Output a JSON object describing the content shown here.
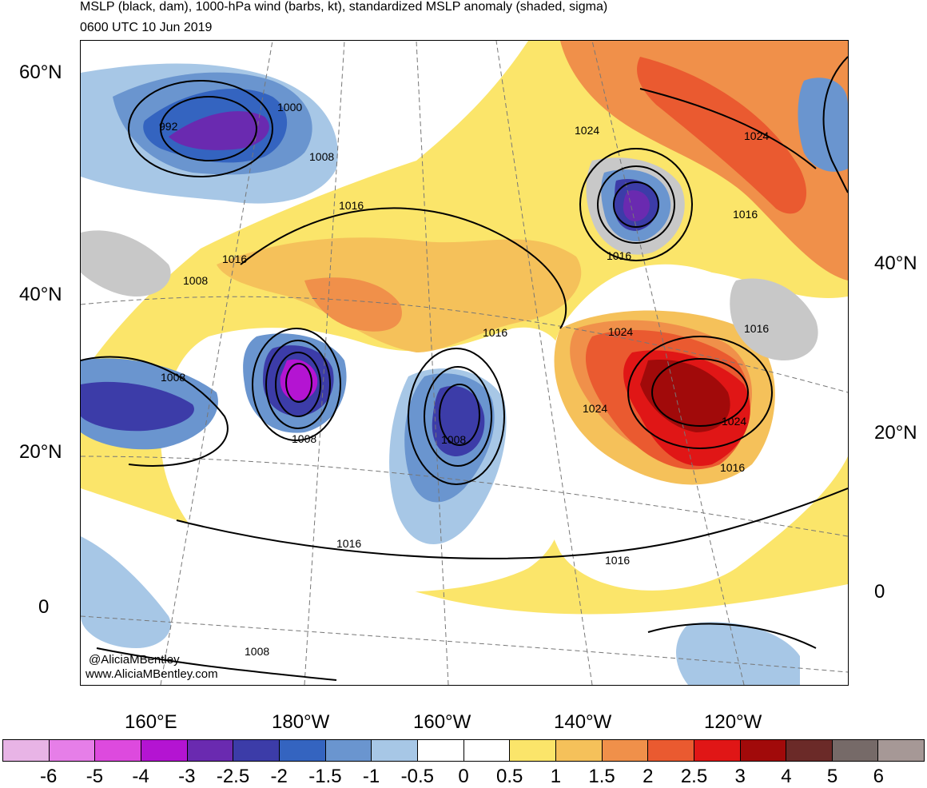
{
  "title_line1": "MSLP (black, dam), 1000-hPa wind (barbs, kt), standardized MSLP anomaly (shaded, sigma)",
  "title_line2": "0600 UTC 10 Jun 2019",
  "lat_labels_left": [
    "60°N",
    "40°N",
    "20°N",
    "0"
  ],
  "lat_labels_right": [
    "40°N",
    "20°N",
    "0"
  ],
  "lon_labels": [
    "160°E",
    "180°W",
    "160°W",
    "140°W",
    "120°W"
  ],
  "credit_handle": "@AliciaMBentley",
  "credit_url": "www.AliciaMBentley.com",
  "contour_labels": [
    "992",
    "1000",
    "1008",
    "1016",
    "1016",
    "1008",
    "1024",
    "1016",
    "1024",
    "1016",
    "1016",
    "1008",
    "1008",
    "1008",
    "1024",
    "1024",
    "1016",
    "1024",
    "1016",
    "1016",
    "1016",
    "1008"
  ],
  "colorbar": {
    "colors": [
      "#e8b4e6",
      "#e67ee8",
      "#dd4ade",
      "#b414d2",
      "#6a2ab0",
      "#3c3ca8",
      "#3464c0",
      "#6a95cf",
      "#a7c7e6",
      "#ffffff",
      "#ffffff",
      "#fbe56a",
      "#f5c15a",
      "#f0904a",
      "#ea5a30",
      "#e01616",
      "#a10a0a",
      "#6b2a28",
      "#766a68",
      "#a69896"
    ],
    "tick_labels": [
      "-6",
      "-5",
      "-4",
      "-3",
      "-2.5",
      "-2",
      "-1.5",
      "-1",
      "-0.5",
      "0",
      "0.5",
      "1",
      "1.5",
      "2",
      "2.5",
      "3",
      "4",
      "5",
      "6"
    ]
  }
}
